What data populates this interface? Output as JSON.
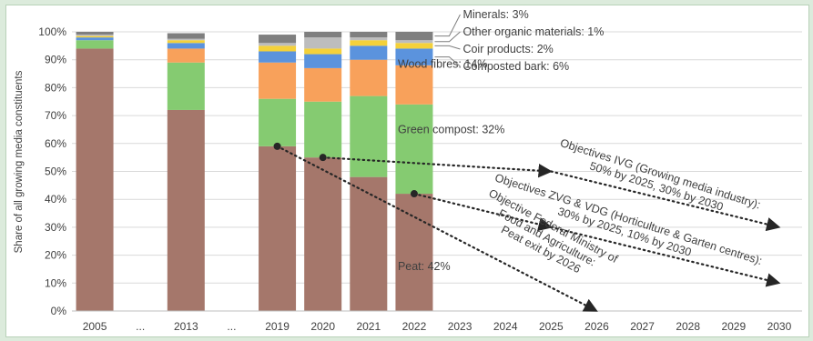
{
  "chart_data": {
    "type": "stacked-bar",
    "ylabel": "Share of all growing media constituents",
    "ylim": [
      0,
      100
    ],
    "yticks": [
      "0%",
      "10%",
      "20%",
      "30%",
      "40%",
      "50%",
      "60%",
      "70%",
      "80%",
      "90%",
      "100%"
    ],
    "categories": [
      "2005",
      "...",
      "2013",
      "...",
      "2019",
      "2020",
      "2021",
      "2022",
      "2023",
      "2024",
      "2025",
      "2026",
      "2027",
      "2028",
      "2029",
      "2030"
    ],
    "series": [
      {
        "name": "Peat",
        "color": "#a5776b",
        "values": [
          94,
          null,
          72,
          null,
          59,
          55,
          48,
          42,
          null,
          null,
          null,
          null,
          null,
          null,
          null,
          null
        ]
      },
      {
        "name": "Green compost",
        "color": "#85cb71",
        "values": [
          3,
          null,
          17,
          null,
          17,
          20,
          29,
          32,
          null,
          null,
          null,
          null,
          null,
          null,
          null,
          null
        ]
      },
      {
        "name": "Wood fibres",
        "color": "#f8a15b",
        "values": [
          0,
          null,
          5,
          null,
          13,
          12,
          13,
          14,
          null,
          null,
          null,
          null,
          null,
          null,
          null,
          null
        ]
      },
      {
        "name": "Composted bark",
        "color": "#5b93dd",
        "values": [
          1,
          null,
          2,
          null,
          4,
          5,
          5,
          6,
          null,
          null,
          null,
          null,
          null,
          null,
          null,
          null
        ]
      },
      {
        "name": "Coir products",
        "color": "#f4d13a",
        "values": [
          0.5,
          null,
          1,
          null,
          2,
          2,
          2,
          2,
          null,
          null,
          null,
          null,
          null,
          null,
          null,
          null
        ]
      },
      {
        "name": "Other organic materials",
        "color": "#bdbdbd",
        "values": [
          0.5,
          null,
          0.5,
          null,
          1,
          4,
          1,
          1,
          null,
          null,
          null,
          null,
          null,
          null,
          null,
          null
        ]
      },
      {
        "name": "Minerals",
        "color": "#7f7f7f",
        "values": [
          1,
          null,
          2,
          null,
          3,
          2,
          2,
          3,
          null,
          null,
          null,
          null,
          null,
          null,
          null,
          null
        ]
      }
    ],
    "labels": [
      {
        "text": "Minerals: 3%",
        "series": "Minerals"
      },
      {
        "text": "Other organic materials: 1%",
        "series": "Other organic materials"
      },
      {
        "text": "Coir products: 2%",
        "series": "Coir products"
      },
      {
        "text": "Composted bark: 6%",
        "series": "Composted bark"
      },
      {
        "text": "Wood fibres: 14%",
        "series": "Wood fibres"
      },
      {
        "text": "Green compost: 32%",
        "series": "Green compost"
      },
      {
        "text": "Peat: 42%",
        "series": "Peat"
      }
    ],
    "objectives": [
      {
        "lines": [
          "Objectives IVG (Growing media industry):",
          "50% by 2025, 30% by 2030"
        ],
        "start": {
          "x": "2020",
          "y": 55
        },
        "via": {
          "x": "2025",
          "y": 50
        },
        "end": {
          "x": "2030",
          "y": 30
        }
      },
      {
        "lines": [
          "Objectives ZVG & VDG (Horticulture & Garten centres):",
          "30% by 2025, 10% by 2030"
        ],
        "start": {
          "x": "2022",
          "y": 42
        },
        "via": {
          "x": "2025",
          "y": 30
        },
        "end": {
          "x": "2030",
          "y": 10
        }
      },
      {
        "lines": [
          "Objective Federal Ministry of",
          "Food and Agriculture:",
          "Peat exit by 2026"
        ],
        "start": {
          "x": "2019",
          "y": 59
        },
        "end": {
          "x": "2026",
          "y": 0
        }
      }
    ]
  }
}
